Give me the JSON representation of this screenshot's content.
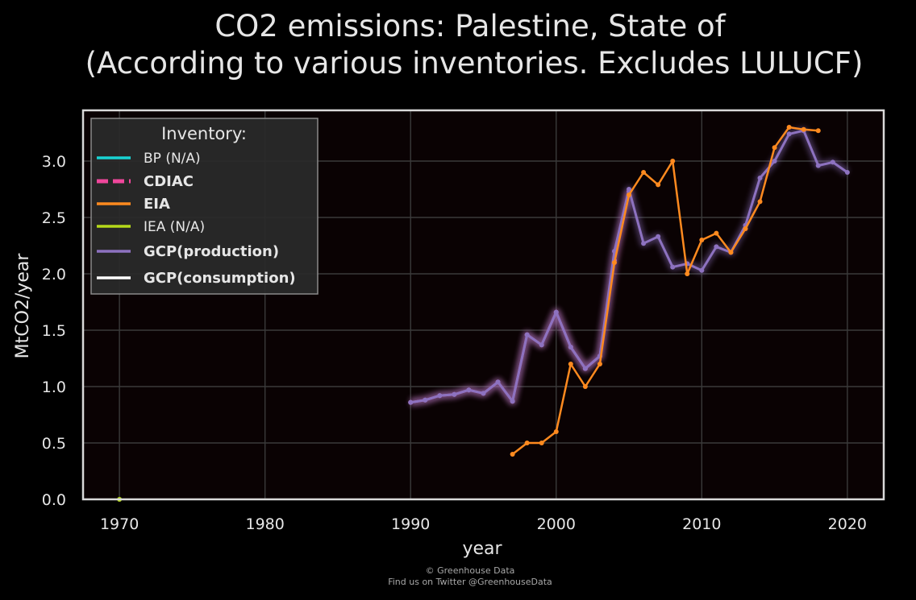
{
  "chart_data": {
    "type": "line",
    "title": "CO2 emissions: Palestine, State of",
    "subtitle": "(According to various inventories. Excludes LULUCF)",
    "xlabel": "year",
    "ylabel": "MtCO2/year",
    "xlim": [
      1967.5,
      2022.5
    ],
    "ylim": [
      0,
      3.45
    ],
    "x_ticks": [
      1970,
      1980,
      1990,
      2000,
      2010,
      2020
    ],
    "y_ticks": [
      0.0,
      0.5,
      1.0,
      1.5,
      2.0,
      2.5,
      3.0
    ],
    "y_tick_labels": [
      "0.0",
      "0.5",
      "1.0",
      "1.5",
      "2.0",
      "2.5",
      "3.0"
    ],
    "grid": true,
    "legend": {
      "title": "Inventory:",
      "placement": "top-left",
      "entries": [
        {
          "label": "BP (N/A)",
          "color": "#19d3d3",
          "style": "solid",
          "bold": false
        },
        {
          "label": "CDIAC",
          "color": "#f0479c",
          "style": "dashed",
          "bold": true
        },
        {
          "label": "EIA",
          "color": "#ff8a1f",
          "style": "solid",
          "bold": true
        },
        {
          "label": "IEA (N/A)",
          "color": "#b5d91a",
          "style": "solid",
          "bold": false
        },
        {
          "label": "GCP(production)",
          "color": "#8d72c0",
          "style": "solid",
          "bold": true
        },
        {
          "label": "GCP(consumption)",
          "color": "#ffffff",
          "style": "solid",
          "bold": true
        }
      ]
    },
    "series": [
      {
        "name": "CDIAC",
        "color": "#d66aa8",
        "glow": true,
        "x": [
          1990,
          1991,
          1992,
          1993,
          1994,
          1995,
          1996,
          1997,
          1998,
          1999,
          2000,
          2001,
          2002,
          2003,
          2004,
          2005
        ],
        "y": [
          0.86,
          0.88,
          0.92,
          0.93,
          0.97,
          0.94,
          1.04,
          0.87,
          1.46,
          1.37,
          1.66,
          1.35,
          1.16,
          1.27,
          2.12,
          2.73
        ]
      },
      {
        "name": "GCP(production)",
        "color": "#8d72c0",
        "glow": true,
        "x": [
          1990,
          1991,
          1992,
          1993,
          1994,
          1995,
          1996,
          1997,
          1998,
          1999,
          2000,
          2001,
          2002,
          2003,
          2004,
          2005,
          2006,
          2007,
          2008,
          2009,
          2010,
          2011,
          2012,
          2013,
          2014,
          2015,
          2016,
          2017,
          2018,
          2019,
          2020
        ],
        "y": [
          0.86,
          0.88,
          0.92,
          0.93,
          0.97,
          0.94,
          1.04,
          0.87,
          1.46,
          1.37,
          1.66,
          1.35,
          1.16,
          1.27,
          2.2,
          2.75,
          2.27,
          2.33,
          2.06,
          2.09,
          2.03,
          2.24,
          2.19,
          2.43,
          2.85,
          3.0,
          3.24,
          3.27,
          2.96,
          2.99,
          2.9
        ]
      },
      {
        "name": "EIA",
        "color": "#ff8a1f",
        "glow": false,
        "x": [
          1997,
          1998,
          1999,
          2000,
          2001,
          2002,
          2003,
          2004,
          2005,
          2006,
          2007,
          2008,
          2009,
          2010,
          2011,
          2012,
          2013,
          2014,
          2015,
          2016,
          2017,
          2018
        ],
        "y": [
          0.4,
          0.5,
          0.5,
          0.6,
          1.2,
          1.0,
          1.2,
          2.1,
          2.7,
          2.9,
          2.79,
          3.0,
          2.0,
          2.3,
          2.36,
          2.19,
          2.4,
          2.64,
          3.12,
          3.3,
          3.28,
          3.27
        ]
      },
      {
        "name": "IEA (N/A)",
        "color": "#b5d91a",
        "glow": false,
        "x": [
          1970
        ],
        "y": [
          0.0
        ]
      }
    ]
  },
  "footer": {
    "line1": "© Greenhouse Data",
    "line2": "Find us on Twitter @GreenhouseData"
  }
}
